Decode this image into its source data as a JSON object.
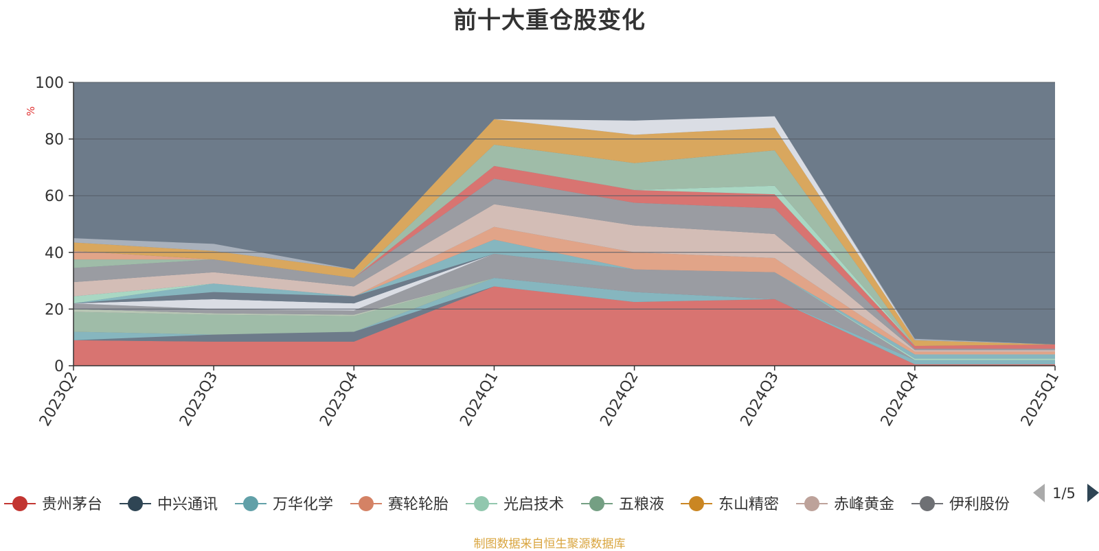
{
  "chart_data": {
    "type": "area",
    "title": "前十大重仓股变化",
    "ylabel": "%",
    "ylim": [
      0,
      100
    ],
    "yticks": [
      0,
      20,
      40,
      60,
      80,
      100
    ],
    "grid": true,
    "stacked": true,
    "categories": [
      "2023Q2",
      "2023Q3",
      "2023Q4",
      "2024Q1",
      "2024Q2",
      "2024Q3",
      "2024Q4",
      "2025Q1"
    ],
    "layers": [
      {
        "values": [
          9,
          8.5,
          8.5,
          28,
          22.5,
          23.5,
          0.5,
          0.5
        ],
        "color": "#d87471"
      },
      {
        "values": [
          0,
          2.5,
          3.5,
          0,
          0,
          0,
          0,
          0
        ],
        "color": "#6d7b8a"
      },
      {
        "values": [
          3,
          0,
          0,
          3,
          3.5,
          0,
          1.5,
          1.5
        ],
        "color": "#86b6bf"
      },
      {
        "values": [
          7,
          7,
          5.5,
          0,
          0,
          0,
          0,
          0
        ],
        "color": "#9fbca8"
      },
      {
        "values": [
          1,
          0.5,
          0.5,
          0,
          0,
          0,
          0,
          0
        ],
        "color": "#b8c6b4"
      },
      {
        "values": [
          2,
          1.5,
          1.5,
          8.5,
          8,
          9.5,
          0,
          0
        ],
        "color": "#9a9ca2"
      },
      {
        "values": [
          0,
          3.5,
          2.5,
          0,
          0,
          0,
          0,
          0
        ],
        "color": "#dadde4"
      },
      {
        "values": [
          0,
          0,
          0,
          0,
          0,
          0,
          0.5,
          0.5
        ],
        "color": "#a9d7c3"
      },
      {
        "values": [
          0,
          2.5,
          2.5,
          0,
          0,
          0,
          0,
          0
        ],
        "color": "#6d7b8a"
      },
      {
        "values": [
          0,
          3,
          0,
          5,
          0,
          0,
          1.5,
          1.5
        ],
        "color": "#86b6bf"
      },
      {
        "values": [
          0,
          0,
          0,
          4.5,
          6,
          5,
          1,
          1
        ],
        "color": "#e1a488"
      },
      {
        "values": [
          2.5,
          0,
          0,
          0,
          0,
          0,
          0,
          0
        ],
        "color": "#a9d7c3"
      },
      {
        "values": [
          5,
          4,
          3.5,
          8,
          9.5,
          8.5,
          0.5,
          0.5
        ],
        "color": "#d3bdb6"
      },
      {
        "values": [
          5,
          4.5,
          3,
          9,
          8,
          9,
          0.5,
          0.5
        ],
        "color": "#9a9ca2"
      },
      {
        "values": [
          0,
          0,
          0,
          4.5,
          4.5,
          5,
          1,
          1.5
        ],
        "color": "#d87471"
      },
      {
        "values": [
          0,
          0,
          0,
          0,
          0,
          3,
          0,
          0
        ],
        "color": "#a9d7c3"
      },
      {
        "values": [
          3,
          0,
          0,
          7.5,
          9.5,
          12.5,
          0,
          0
        ],
        "color": "#9fbca8"
      },
      {
        "values": [
          3,
          0,
          0,
          0,
          0,
          0,
          0,
          0
        ],
        "color": "#e1a488"
      },
      {
        "values": [
          3,
          3,
          3,
          9,
          10,
          8,
          2,
          0
        ],
        "color": "#d9a75e"
      },
      {
        "values": [
          0,
          0,
          0,
          0,
          5,
          4,
          0,
          0
        ],
        "color": "#dadde4"
      },
      {
        "values": [
          1.5,
          2.5,
          0,
          0,
          0,
          0,
          0.5,
          0
        ],
        "color": "#a9b1bc"
      }
    ],
    "remainder_color": "#6d7b8a",
    "legend": {
      "position": "bottom",
      "page": "1/5",
      "items": [
        {
          "name": "贵州茅台",
          "color": "#c23531"
        },
        {
          "name": "中兴通讯",
          "color": "#2f4554"
        },
        {
          "name": "万华化学",
          "color": "#61a0a8"
        },
        {
          "name": "赛轮轮胎",
          "color": "#d48265"
        },
        {
          "name": "光启技术",
          "color": "#91c7ae"
        },
        {
          "name": "五粮液",
          "color": "#749f83"
        },
        {
          "name": "东山精密",
          "color": "#ca8622"
        },
        {
          "name": "赤峰黄金",
          "color": "#bda29a"
        },
        {
          "name": "伊利股份",
          "color": "#6e7074"
        }
      ]
    }
  },
  "source_note": "制图数据来自恒生聚源数据库"
}
